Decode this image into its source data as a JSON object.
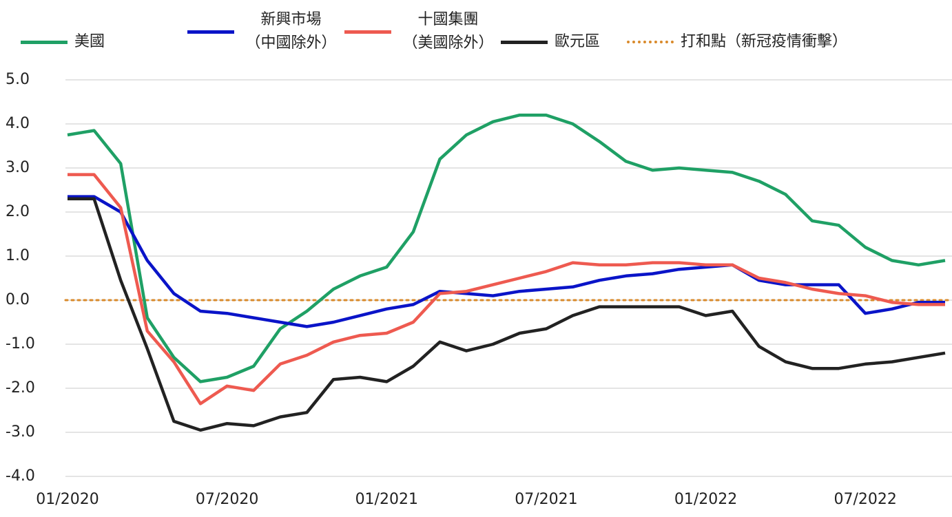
{
  "chart_data": {
    "type": "line",
    "categories": [
      "01/2020",
      null,
      null,
      null,
      null,
      null,
      "07/2020",
      null,
      null,
      null,
      null,
      null,
      "01/2021",
      null,
      null,
      null,
      null,
      null,
      "07/2021",
      null,
      null,
      null,
      null,
      null,
      "01/2022",
      null,
      null,
      null,
      null,
      null,
      "07/2022",
      null,
      null,
      null
    ],
    "series": [
      {
        "name": "美國",
        "color": "#1fa065",
        "values": [
          3.75,
          3.85,
          3.1,
          -0.4,
          -1.3,
          -1.85,
          -1.75,
          -1.5,
          -0.65,
          -0.25,
          0.25,
          0.55,
          0.75,
          1.55,
          3.2,
          3.75,
          4.05,
          4.2,
          4.2,
          4.0,
          3.6,
          3.15,
          2.95,
          3.0,
          2.95,
          2.9,
          2.7,
          2.4,
          1.8,
          1.7,
          1.2,
          0.9,
          0.8,
          0.9
        ]
      },
      {
        "name": "新興市場（中國除外）",
        "color": "#0a14c8",
        "values": [
          2.35,
          2.35,
          2.0,
          0.9,
          0.15,
          -0.25,
          -0.3,
          -0.4,
          -0.5,
          -0.6,
          -0.5,
          -0.35,
          -0.2,
          -0.1,
          0.2,
          0.15,
          0.1,
          0.2,
          0.25,
          0.3,
          0.45,
          0.55,
          0.6,
          0.7,
          0.75,
          0.8,
          0.45,
          0.35,
          0.35,
          0.35,
          -0.3,
          -0.2,
          -0.05,
          -0.05
        ]
      },
      {
        "name": "十國集團（美國除外）",
        "color": "#ee5a50",
        "values": [
          2.85,
          2.85,
          2.1,
          -0.7,
          -1.4,
          -2.35,
          -1.95,
          -2.05,
          -1.45,
          -1.25,
          -0.95,
          -0.8,
          -0.75,
          -0.5,
          0.15,
          0.2,
          0.35,
          0.5,
          0.65,
          0.85,
          0.8,
          0.8,
          0.85,
          0.85,
          0.8,
          0.8,
          0.5,
          0.4,
          0.25,
          0.15,
          0.1,
          -0.05,
          -0.1,
          -0.1
        ]
      },
      {
        "name": "歐元區",
        "color": "#222222",
        "values": [
          2.3,
          2.3,
          0.45,
          -1.1,
          -2.75,
          -2.95,
          -2.8,
          -2.85,
          -2.65,
          -2.55,
          -1.8,
          -1.75,
          -1.85,
          -1.5,
          -0.95,
          -1.15,
          -1.0,
          -0.75,
          -0.65,
          -0.35,
          -0.15,
          -0.15,
          -0.15,
          -0.15,
          -0.35,
          -0.25,
          -1.05,
          -1.4,
          -1.55,
          -1.55,
          -1.45,
          -1.4,
          -1.3,
          -1.2
        ]
      }
    ],
    "reference_line": {
      "name": "打和點（新冠疫情衝擊）",
      "value": 0,
      "color": "#d98a2b",
      "style": "dotted"
    },
    "ylim": [
      -4,
      5
    ],
    "yticks": [
      {
        "value": -4,
        "label": "-4.0"
      },
      {
        "value": -3,
        "label": "-3.0"
      },
      {
        "value": -2,
        "label": "-2.0"
      },
      {
        "value": -1,
        "label": "-1.0"
      },
      {
        "value": 0,
        "label": "0.0"
      },
      {
        "value": 1,
        "label": "1.0"
      },
      {
        "value": 2,
        "label": "2.0"
      },
      {
        "value": 3,
        "label": "3.0"
      },
      {
        "value": 4,
        "label": "4.0"
      },
      {
        "value": 5,
        "label": "5.0"
      }
    ],
    "grid": true
  }
}
